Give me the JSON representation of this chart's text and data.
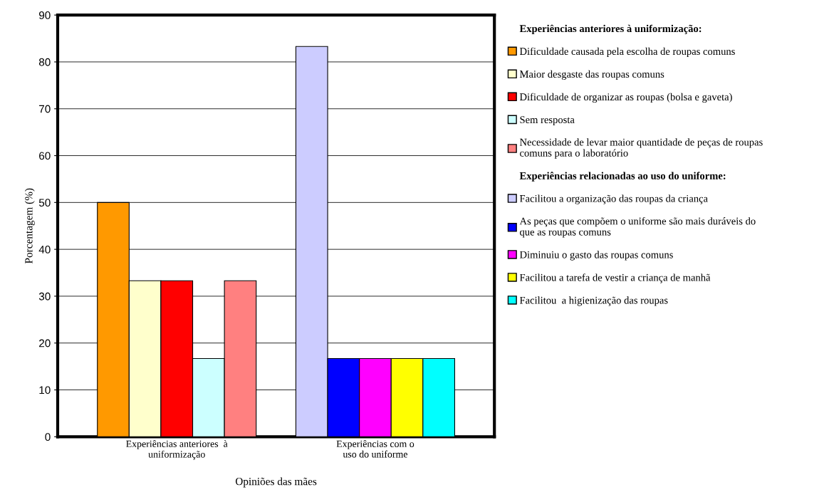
{
  "chart_data": {
    "type": "bar",
    "xlabel": "Opiniões das mães",
    "ylabel": "Porcentagem (%)",
    "categories": [
      "Experiências anteriores  à\nuniformização",
      "Experiências com o\nuso do uniforme"
    ],
    "series": [
      {
        "name": "Dificuldade causada pela escolha de roupas comuns",
        "color": "#ff9900",
        "values": [
          50,
          null
        ]
      },
      {
        "name": "Maior desgaste das roupas comuns",
        "color": "#ffffcc",
        "values": [
          33.3,
          null
        ]
      },
      {
        "name": "Dificuldade de organizar as roupas (bolsa e gaveta)",
        "color": "#ff0000",
        "values": [
          33.3,
          null
        ]
      },
      {
        "name": "Sem resposta",
        "color": "#ccffff",
        "values": [
          16.7,
          null
        ]
      },
      {
        "name": "Necessidade de levar maior quantidade de peças de roupas\ncomuns para o laboratório",
        "color": "#ff8080",
        "values": [
          33.3,
          null
        ]
      },
      {
        "name": "Facilitou a organização das roupas da criança",
        "color": "#ccccff",
        "values": [
          null,
          83.3
        ]
      },
      {
        "name": "As peças que compõem o uniforme são mais duráveis do\nque as roupas comuns",
        "color": "#0000ff",
        "values": [
          null,
          16.7
        ]
      },
      {
        "name": "Diminuiu o gasto das roupas comuns",
        "color": "#ff00ff",
        "values": [
          null,
          16.7
        ]
      },
      {
        "name": "Facilitou a tarefa de vestir a criança de manhã",
        "color": "#ffff00",
        "values": [
          null,
          16.7
        ]
      },
      {
        "name": "Facilitou  a higienização das roupas",
        "color": "#00ffff",
        "values": [
          null,
          16.7
        ]
      }
    ],
    "annotations": [
      "Experiências anteriores à uniformização:",
      "Experiências relacionadas ao uso do uniforme:"
    ],
    "ylim": [
      0,
      90
    ],
    "yticks": [
      0,
      10,
      20,
      30,
      40,
      50,
      60,
      70,
      80,
      90
    ],
    "grid": "y",
    "legend": "right"
  }
}
